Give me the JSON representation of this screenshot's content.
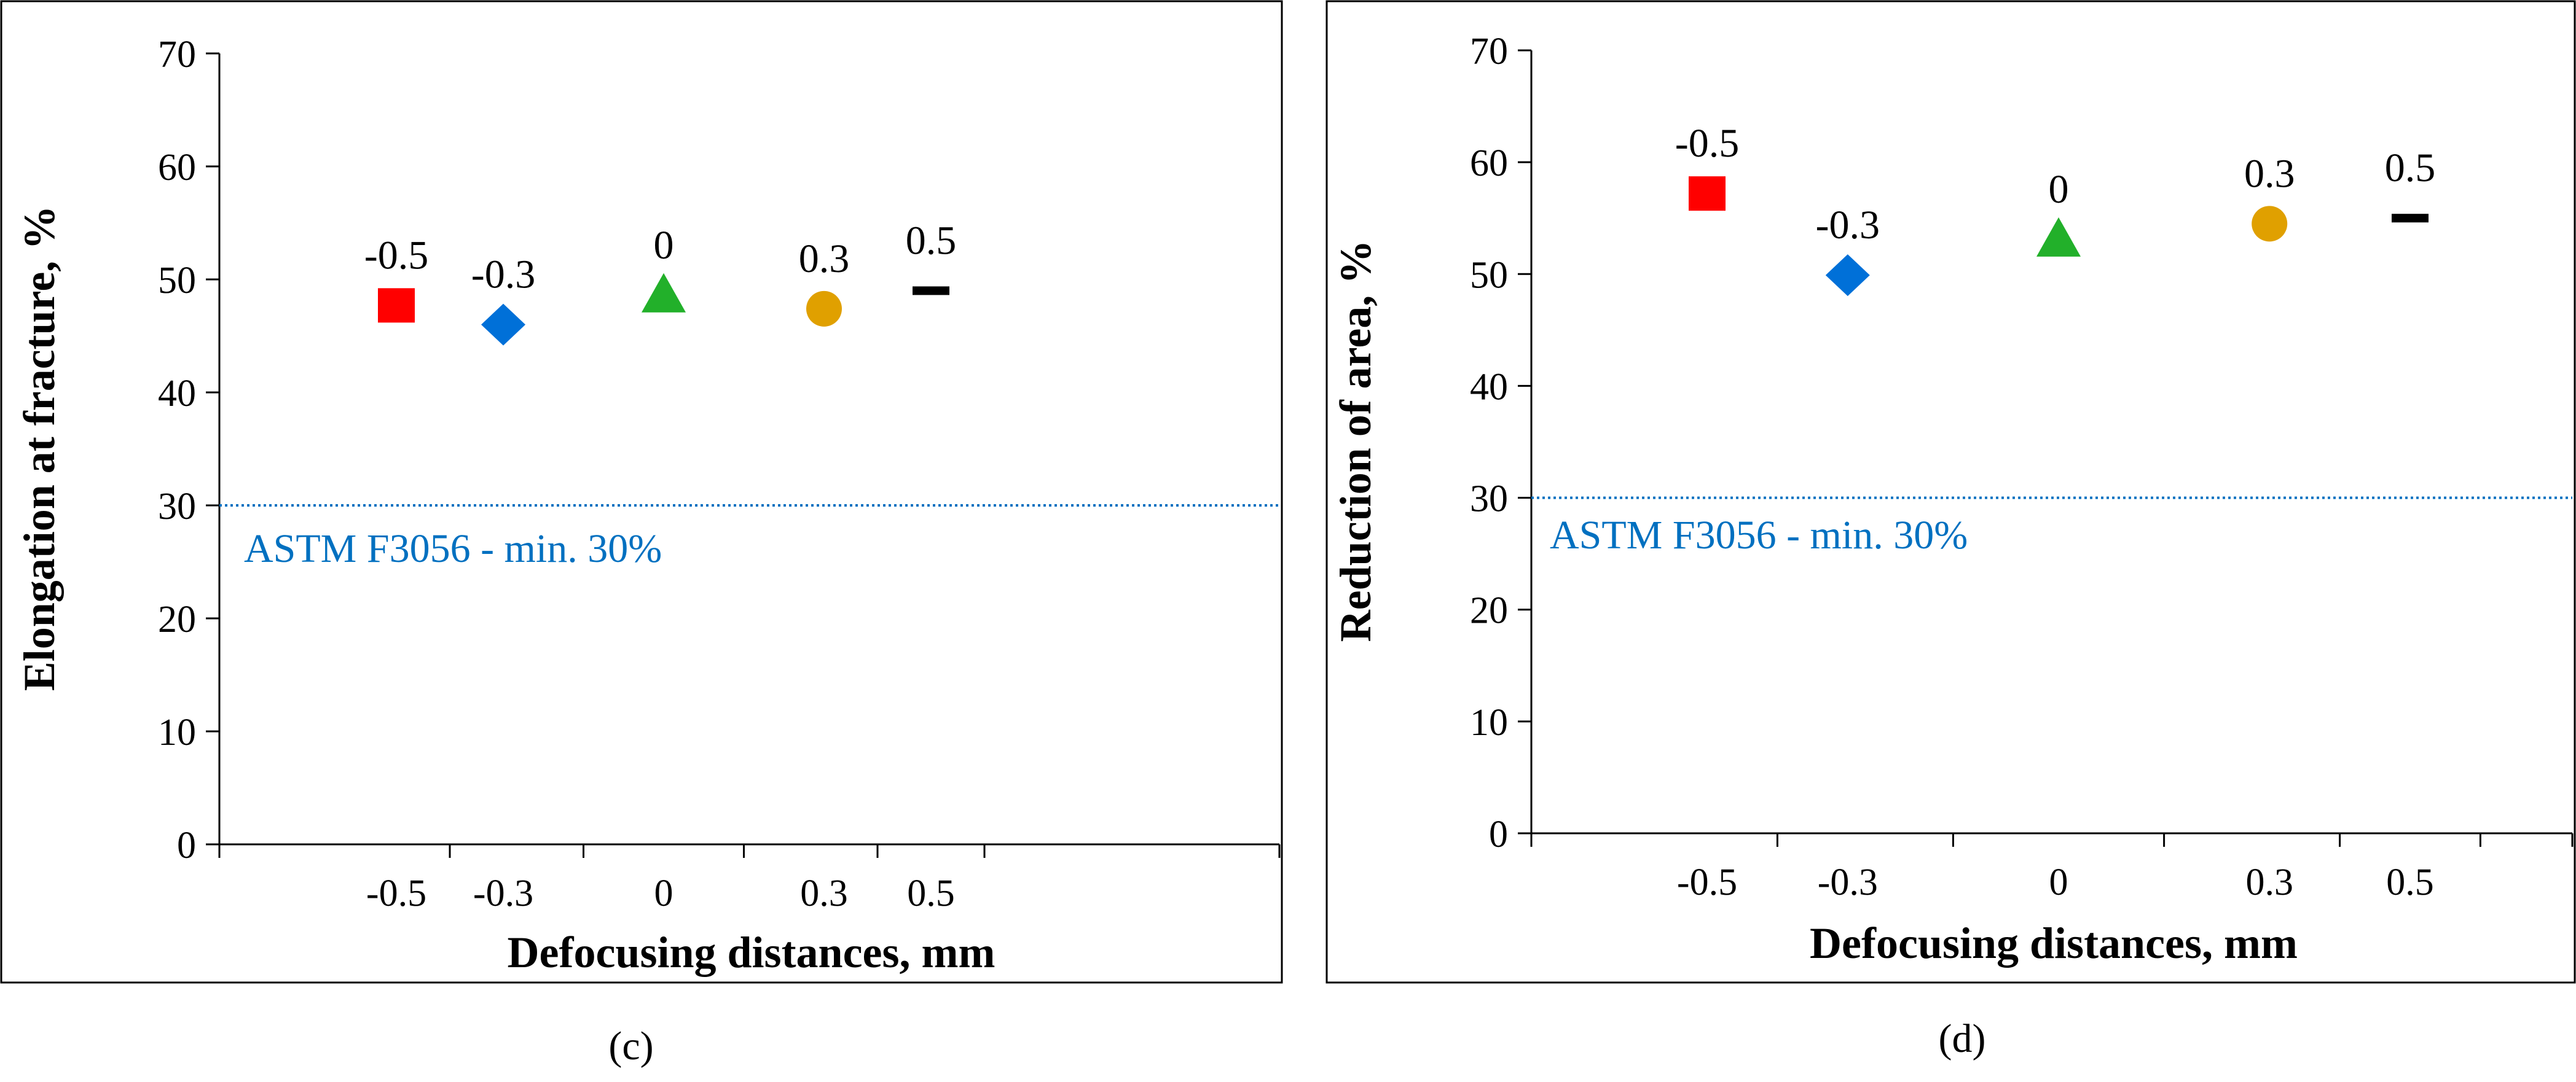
{
  "chart_data": [
    {
      "type": "scatter",
      "panel_label": "(c)",
      "xlabel": "Defocusing distances, mm",
      "ylabel": "Elongation at fracture, %",
      "ylim": [
        0,
        70
      ],
      "yticks": [
        0,
        10,
        20,
        30,
        40,
        50,
        60,
        70
      ],
      "xlim": [
        -0.8,
        0.8
      ],
      "xticks": [
        "-0.5",
        "-0.3",
        "0",
        "0.3",
        "0.5"
      ],
      "grid": false,
      "reference_line": {
        "value": 30,
        "label": "ASTM F3056 - min. 30%",
        "color": "#0070C0"
      },
      "series": [
        {
          "name": "-0.5",
          "x": -0.5,
          "y": 47.7,
          "marker": "square",
          "color": "#FF0000"
        },
        {
          "name": "-0.3",
          "x": -0.3,
          "y": 46.0,
          "marker": "diamond",
          "color": "#0070D8"
        },
        {
          "name": "0",
          "x": 0.0,
          "y": 48.6,
          "marker": "triangle",
          "color": "#22B02A"
        },
        {
          "name": "0.3",
          "x": 0.3,
          "y": 47.4,
          "marker": "circle",
          "color": "#E0A000"
        },
        {
          "name": "0.5",
          "x": 0.5,
          "y": 49.0,
          "marker": "dash",
          "color": "#000000"
        }
      ]
    },
    {
      "type": "scatter",
      "panel_label": "(d)",
      "xlabel": "Defocusing distances, mm",
      "ylabel": "Reduction of area, %",
      "ylim": [
        0,
        70
      ],
      "yticks": [
        0,
        10,
        20,
        30,
        40,
        50,
        60,
        70
      ],
      "xlim": [
        -0.8,
        0.8
      ],
      "xticks": [
        "-0.5",
        "-0.3",
        "0",
        "0.3",
        "0.5"
      ],
      "grid": false,
      "reference_line": {
        "value": 30,
        "label": "ASTM F3056 - min. 30%",
        "color": "#0070C0"
      },
      "series": [
        {
          "name": "-0.5",
          "x": -0.5,
          "y": 57.2,
          "marker": "square",
          "color": "#FF0000"
        },
        {
          "name": "-0.3",
          "x": -0.3,
          "y": 49.9,
          "marker": "diamond",
          "color": "#0070D8"
        },
        {
          "name": "0",
          "x": 0.0,
          "y": 53.1,
          "marker": "triangle",
          "color": "#22B02A"
        },
        {
          "name": "0.3",
          "x": 0.3,
          "y": 54.5,
          "marker": "circle",
          "color": "#E0A000"
        },
        {
          "name": "0.5",
          "x": 0.5,
          "y": 55.0,
          "marker": "dash",
          "color": "#000000"
        }
      ]
    }
  ]
}
